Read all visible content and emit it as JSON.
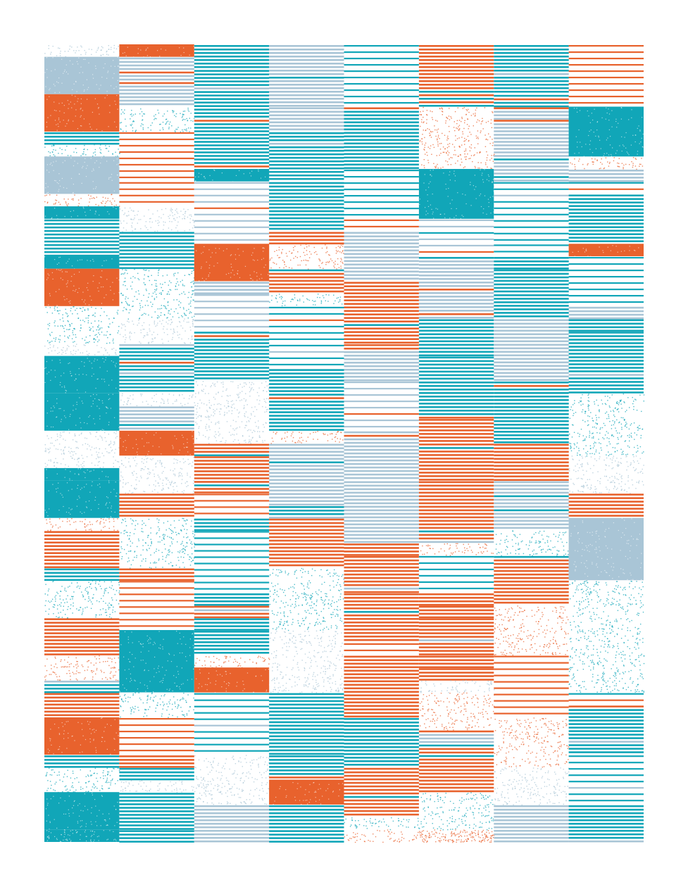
{
  "artwork": {
    "kind": "abstract generative striped pattern",
    "columns": 8,
    "rows": 64,
    "seed": 7,
    "palette": {
      "teal": "#11a6b8",
      "orange": "#e8622d",
      "light_blue": "#a9c5d6",
      "background": "#ffffff"
    },
    "styles": [
      "solid",
      "stripes",
      "sparse-stripes",
      "speckle"
    ]
  }
}
